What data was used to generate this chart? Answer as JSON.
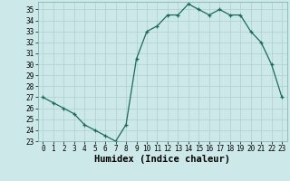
{
  "x": [
    0,
    1,
    2,
    3,
    4,
    5,
    6,
    7,
    8,
    9,
    10,
    11,
    12,
    13,
    14,
    15,
    16,
    17,
    18,
    19,
    20,
    21,
    22,
    23
  ],
  "y": [
    27,
    26.5,
    26,
    25.5,
    24.5,
    24,
    23.5,
    23,
    24.5,
    30.5,
    33,
    33.5,
    34.5,
    34.5,
    35.5,
    35,
    34.5,
    35,
    34.5,
    34.5,
    33,
    32,
    30,
    27
  ],
  "xlabel": "Humidex (Indice chaleur)",
  "ylim": [
    23,
    35.7
  ],
  "xlim": [
    -0.5,
    23.5
  ],
  "yticks": [
    23,
    24,
    25,
    26,
    27,
    28,
    29,
    30,
    31,
    32,
    33,
    34,
    35
  ],
  "xticks": [
    0,
    1,
    2,
    3,
    4,
    5,
    6,
    7,
    8,
    9,
    10,
    11,
    12,
    13,
    14,
    15,
    16,
    17,
    18,
    19,
    20,
    21,
    22,
    23
  ],
  "line_color": "#1a6b5a",
  "marker_color": "#1a6b5a",
  "bg_color": "#cce8e8",
  "grid_color": "#aed0d0",
  "axes_bg": "#cce8e8",
  "tick_fontsize": 5.5,
  "xlabel_fontsize": 7.5
}
